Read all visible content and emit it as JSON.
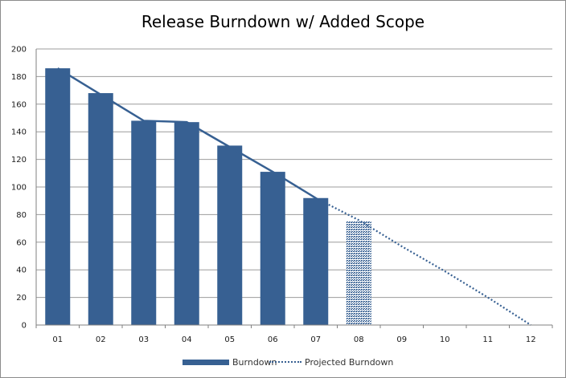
{
  "colors": {
    "series": "#376092",
    "grid": "#9c9c9c",
    "axis": "#808080"
  },
  "chart_data": {
    "type": "bar",
    "title": "Release Burndown w/ Added Scope",
    "xlabel": "",
    "ylabel": "",
    "categories": [
      "01",
      "02",
      "03",
      "04",
      "05",
      "06",
      "07",
      "08",
      "09",
      "10",
      "11",
      "12"
    ],
    "ylim": [
      0,
      200
    ],
    "yticks": [
      0,
      20,
      40,
      60,
      80,
      100,
      120,
      140,
      160,
      180,
      200
    ],
    "grid": true,
    "legend_position": "bottom",
    "series": [
      {
        "name": "Burndown",
        "type": "bar",
        "values": [
          186,
          168,
          148,
          147,
          130,
          111,
          92,
          null,
          null,
          null,
          null,
          null
        ]
      },
      {
        "name": "Projected Burndown",
        "type": "bar-hatched",
        "values": [
          null,
          null,
          null,
          null,
          null,
          null,
          null,
          75,
          null,
          null,
          null,
          null
        ]
      },
      {
        "name": "Burndown",
        "type": "line",
        "style": "solid",
        "values": [
          186,
          167,
          148,
          147,
          129,
          111,
          92,
          null,
          null,
          null,
          null,
          null
        ]
      },
      {
        "name": "Projected Burndown",
        "type": "line",
        "style": "dotted",
        "values": [
          null,
          null,
          null,
          null,
          null,
          null,
          92,
          76,
          57,
          39,
          20,
          0
        ]
      }
    ],
    "legend": [
      {
        "label": "Burndown",
        "marker": "bar"
      },
      {
        "label": "Projected Burndown",
        "marker": "dotted-line"
      }
    ]
  }
}
